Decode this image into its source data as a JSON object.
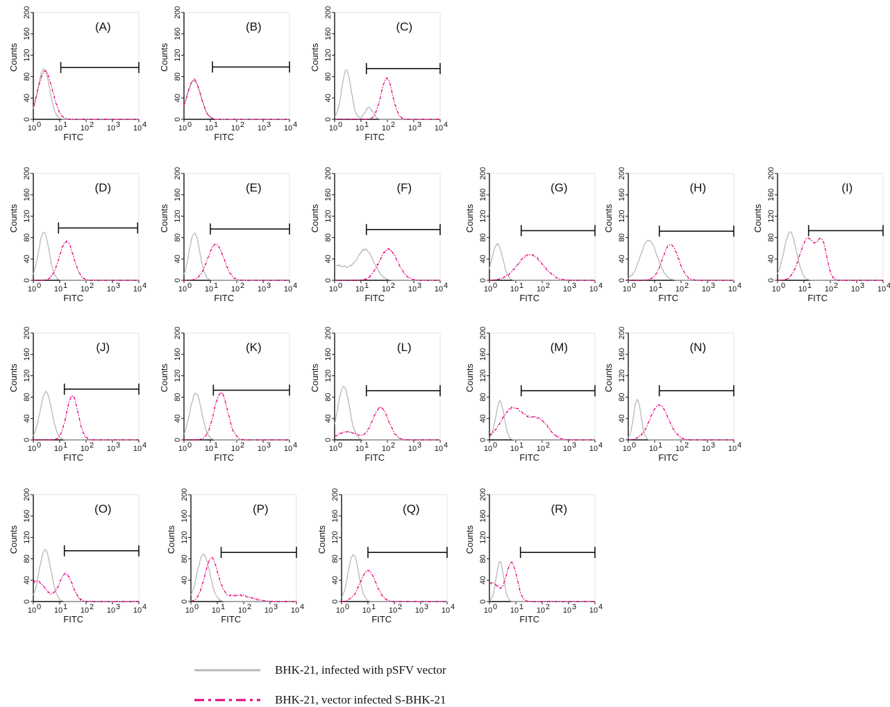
{
  "chart_data": {
    "type": "line",
    "xlabel": "FITC",
    "ylabel": "Counts",
    "x_scale": "log",
    "xlim": [
      1,
      10000
    ],
    "ylim": [
      0,
      200
    ],
    "x_ticks": [
      "10",
      "10",
      "10",
      "10",
      "10"
    ],
    "x_tick_exponents": [
      "0",
      "1",
      "2",
      "3",
      "4"
    ],
    "y_ticks": [
      "0",
      "40",
      "80",
      "120",
      "160",
      "200"
    ],
    "colors": {
      "control": "#b8b8b8",
      "sample": "#e6007e",
      "axis": "#111111",
      "gate": "#111111"
    },
    "legend": {
      "placement": "bottom",
      "entries": [
        {
          "label": "BHK-21, infected with pSFV vector",
          "style": "solid",
          "color": "#b8b8b8"
        },
        {
          "label": "BHK-21, vector infected S-BHK-21",
          "style": "dash-dot",
          "color": "#e6007e"
        }
      ]
    },
    "panels": [
      {
        "label": "(A)",
        "gate": [
          11,
          10000
        ],
        "gate_y": 97,
        "control": [
          [
            2.5,
            95,
            0.22
          ]
        ],
        "sample": [
          [
            2.8,
            90,
            0.28
          ]
        ]
      },
      {
        "label": "(B)",
        "gate": [
          12,
          10000
        ],
        "gate_y": 98,
        "control": [
          [
            2.4,
            72,
            0.26
          ]
        ],
        "sample": [
          [
            2.4,
            74,
            0.26
          ]
        ]
      },
      {
        "label": "(C)",
        "gate": [
          16,
          10000
        ],
        "gate_y": 95,
        "control": [
          [
            2.8,
            92,
            0.18
          ],
          [
            20,
            22,
            0.15
          ]
        ],
        "sample": [
          [
            95,
            77,
            0.22
          ]
        ]
      },
      {
        "label": "(D)",
        "gate": [
          9,
          9000
        ],
        "gate_y": 98,
        "control": [
          [
            2.5,
            90,
            0.2
          ]
        ],
        "sample": [
          [
            18,
            73,
            0.27
          ]
        ]
      },
      {
        "label": "(E)",
        "gate": [
          10,
          10000
        ],
        "gate_y": 96,
        "control": [
          [
            2.5,
            88,
            0.2
          ]
        ],
        "sample": [
          [
            16,
            68,
            0.3
          ]
        ]
      },
      {
        "label": "(F)",
        "gate": [
          16,
          10000
        ],
        "gate_y": 95,
        "control": [
          [
            15,
            55,
            0.32
          ],
          [
            1.2,
            28,
            0.5
          ]
        ],
        "sample": [
          [
            110,
            58,
            0.35
          ]
        ]
      },
      {
        "label": "(G)",
        "gate": [
          16,
          10000
        ],
        "gate_y": 93,
        "control": [
          [
            2,
            68,
            0.2
          ]
        ],
        "sample": [
          [
            35,
            48,
            0.48
          ]
        ]
      },
      {
        "label": "(H)",
        "gate": [
          15,
          10000
        ],
        "gate_y": 92,
        "control": [
          [
            6,
            75,
            0.32
          ]
        ],
        "sample": [
          [
            40,
            68,
            0.3
          ]
        ]
      },
      {
        "label": "(I)",
        "gate": [
          15,
          10000
        ],
        "gate_y": 93,
        "control": [
          [
            3,
            90,
            0.24
          ]
        ],
        "sample": [
          [
            14,
            78,
            0.3
          ],
          [
            50,
            62,
            0.18
          ]
        ]
      },
      {
        "label": "(J)",
        "gate": [
          15,
          10000
        ],
        "gate_y": 95,
        "control": [
          [
            3,
            90,
            0.22
          ]
        ],
        "sample": [
          [
            30,
            82,
            0.22
          ]
        ]
      },
      {
        "label": "(K)",
        "gate": [
          13,
          10000
        ],
        "gate_y": 93,
        "control": [
          [
            2.8,
            88,
            0.22
          ]
        ],
        "sample": [
          [
            25,
            88,
            0.26
          ]
        ]
      },
      {
        "label": "(L)",
        "gate": [
          16,
          10000
        ],
        "gate_y": 92,
        "control": [
          [
            2.2,
            100,
            0.22
          ]
        ],
        "sample": [
          [
            55,
            60,
            0.3
          ],
          [
            3,
            15,
            0.4
          ]
        ]
      },
      {
        "label": "(M)",
        "gate": [
          16,
          10000
        ],
        "gate_y": 92,
        "control": [
          [
            2.5,
            72,
            0.16
          ]
        ],
        "sample": [
          [
            8,
            60,
            0.45
          ],
          [
            80,
            35,
            0.35
          ]
        ]
      },
      {
        "label": "(N)",
        "gate": [
          15,
          10000
        ],
        "gate_y": 92,
        "control": [
          [
            2.2,
            75,
            0.14
          ]
        ],
        "sample": [
          [
            15,
            65,
            0.35
          ]
        ]
      },
      {
        "label": "(O)",
        "gate": [
          15,
          10000
        ],
        "gate_y": 95,
        "control": [
          [
            2.8,
            97,
            0.22
          ]
        ],
        "sample": [
          [
            1.3,
            38,
            0.35
          ],
          [
            17,
            52,
            0.25
          ]
        ]
      },
      {
        "label": "(P)",
        "gate": [
          14,
          10000
        ],
        "gate_y": 92,
        "control": [
          [
            3,
            88,
            0.24
          ]
        ],
        "sample": [
          [
            6,
            80,
            0.25
          ],
          [
            60,
            12,
            0.5
          ]
        ]
      },
      {
        "label": "(Q)",
        "gate": [
          10,
          10000
        ],
        "gate_y": 92,
        "control": [
          [
            2.8,
            88,
            0.2
          ]
        ],
        "sample": [
          [
            10,
            58,
            0.3
          ]
        ]
      },
      {
        "label": "(R)",
        "gate": [
          15,
          10000
        ],
        "gate_y": 92,
        "control": [
          [
            2.5,
            75,
            0.14
          ]
        ],
        "sample": [
          [
            7,
            72,
            0.2
          ],
          [
            1.2,
            35,
            0.3
          ]
        ]
      }
    ]
  }
}
